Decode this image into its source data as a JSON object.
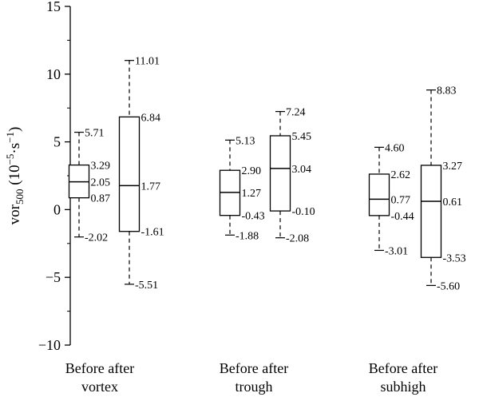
{
  "chart_data": {
    "type": "box",
    "ylim": [
      -10,
      15
    ],
    "yticks": [
      -10,
      -5,
      0,
      5,
      10,
      15
    ],
    "ytick_labels": [
      "−10",
      "−5",
      "0",
      "5",
      "10",
      "15"
    ],
    "ylabel": {
      "main": "vor",
      "sub": "500",
      "unit_open": " (10",
      "unit_exp1": "−5",
      "unit_mid": "·s",
      "unit_exp2": "−1",
      "unit_close": ")"
    },
    "groups": [
      {
        "label_top": "Before after",
        "label_bottom": "vortex"
      },
      {
        "label_top": "Before after",
        "label_bottom": "trough"
      },
      {
        "label_top": "Before after",
        "label_bottom": "subhigh"
      }
    ],
    "boxes": [
      {
        "group": 0,
        "max": 5.71,
        "q3": 3.29,
        "median": 2.05,
        "q1": 0.87,
        "min": -2.02,
        "labels": {
          "max": "5.71",
          "q3": "3.29",
          "median": "2.05",
          "q1": "0.87",
          "min": "-2.02"
        }
      },
      {
        "group": 0,
        "max": 11.01,
        "q3": 6.84,
        "median": 1.77,
        "q1": -1.61,
        "min": -5.51,
        "labels": {
          "max": "11.01",
          "q3": "6.84",
          "median": "1.77",
          "q1": "-1.61",
          "min": "-5.51"
        }
      },
      {
        "group": 1,
        "max": 5.13,
        "q3": 2.9,
        "median": 1.27,
        "q1": -0.43,
        "min": -1.88,
        "labels": {
          "max": "5.13",
          "q3": "2.90",
          "median": "1.27",
          "q1": "-0.43",
          "min": "-1.88"
        }
      },
      {
        "group": 1,
        "max": 7.24,
        "q3": 5.45,
        "median": 3.04,
        "q1": -0.1,
        "min": -2.08,
        "labels": {
          "max": "7.24",
          "q3": "5.45",
          "median": "3.04",
          "q1": "-0.10",
          "min": "-2.08"
        }
      },
      {
        "group": 2,
        "max": 4.6,
        "q3": 2.62,
        "median": 0.77,
        "q1": -0.44,
        "min": -3.01,
        "labels": {
          "max": "4.60",
          "q3": "2.62",
          "median": "0.77",
          "q1": "-0.44",
          "min": "-3.01"
        }
      },
      {
        "group": 2,
        "max": 8.83,
        "q3": 3.27,
        "median": 0.61,
        "q1": -3.53,
        "min": -5.6,
        "labels": {
          "max": "8.83",
          "q3": "3.27",
          "median": "0.61",
          "q1": "-3.53",
          "min": "-5.60"
        }
      }
    ],
    "grid": false,
    "legend": "none"
  }
}
